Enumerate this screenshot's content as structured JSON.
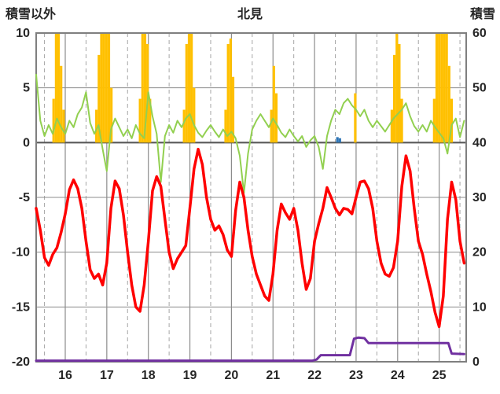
{
  "header": {
    "left_axis_title": "積雪以外",
    "title": "北見",
    "right_axis_title": "積雪"
  },
  "chart_data": {
    "type": "line",
    "title": "北見",
    "grid": {
      "major_color": "#8c8c8c",
      "minor_dash_color": "#a6a6a6",
      "zero_line_color": "#595959",
      "frame_color": "#7f7f7f"
    },
    "left_axis": {
      "label": "積雪以外",
      "min": -20,
      "max": 10,
      "ticks": [
        10,
        5,
        0,
        -5,
        -10,
        -15,
        -20
      ]
    },
    "right_axis": {
      "label": "積雪",
      "min": 0,
      "max": 60,
      "ticks": [
        60,
        50,
        40,
        30,
        20,
        10,
        0
      ]
    },
    "x_axis": {
      "min": 15.3,
      "max": 25.65,
      "major_ticks": [
        16,
        17,
        18,
        19,
        20,
        21,
        22,
        23,
        24,
        25
      ],
      "minor_gridline_start": 15.5,
      "minor_gridline_step": 1
    },
    "series": [
      {
        "name": "snowfall-bars",
        "type": "bar",
        "axis": "left",
        "color": "#FFC000",
        "bar_width_days": 0.06,
        "points": [
          [
            15.72,
            4
          ],
          [
            15.78,
            10
          ],
          [
            15.84,
            10
          ],
          [
            15.9,
            7
          ],
          [
            15.96,
            3
          ],
          [
            16.75,
            3
          ],
          [
            16.81,
            8
          ],
          [
            16.87,
            10
          ],
          [
            16.93,
            10
          ],
          [
            16.99,
            10
          ],
          [
            17.05,
            10
          ],
          [
            17.11,
            5
          ],
          [
            17.8,
            4
          ],
          [
            17.86,
            10
          ],
          [
            17.92,
            10
          ],
          [
            17.98,
            9
          ],
          [
            18.04,
            4
          ],
          [
            18.86,
            3
          ],
          [
            18.92,
            9
          ],
          [
            18.98,
            10
          ],
          [
            19.04,
            10
          ],
          [
            19.1,
            5
          ],
          [
            19.86,
            3
          ],
          [
            19.92,
            9
          ],
          [
            19.98,
            9.5
          ],
          [
            20.04,
            6
          ],
          [
            20.96,
            3
          ],
          [
            21.02,
            7
          ],
          [
            21.08,
            4.5
          ],
          [
            22.98,
            4.5
          ],
          [
            23.86,
            3
          ],
          [
            23.92,
            8
          ],
          [
            23.98,
            10
          ],
          [
            24.04,
            9
          ],
          [
            24.1,
            4
          ],
          [
            24.88,
            4
          ],
          [
            24.94,
            10
          ],
          [
            25.0,
            10
          ],
          [
            25.06,
            10
          ],
          [
            25.12,
            10
          ],
          [
            25.18,
            10
          ],
          [
            25.24,
            7
          ],
          [
            25.3,
            4
          ]
        ]
      },
      {
        "name": "small-blue-bars",
        "type": "bar",
        "axis": "left",
        "color": "#2E75B6",
        "bar_width_days": 0.06,
        "points": [
          [
            22.55,
            0.5
          ],
          [
            22.61,
            0.4
          ]
        ]
      },
      {
        "name": "green-line",
        "type": "line",
        "axis": "left",
        "color": "#92D050",
        "width": 2,
        "x0": 15.3,
        "dx": 0.1,
        "values": [
          6.2,
          2.0,
          0.6,
          1.6,
          0.8,
          2.2,
          1.4,
          0.8,
          2.0,
          1.4,
          2.6,
          3.2,
          4.6,
          1.8,
          0.8,
          1.6,
          -0.6,
          -2.6,
          1.2,
          2.2,
          1.4,
          0.6,
          1.2,
          0.4,
          1.6,
          0.8,
          0.4,
          4.6,
          2.4,
          0.8,
          -3.6,
          0.6,
          1.6,
          0.9,
          2.0,
          1.4,
          2.2,
          2.6,
          1.6,
          0.9,
          0.5,
          1.1,
          1.6,
          1.0,
          0.5,
          1.2,
          0.6,
          1.0,
          0.4,
          -1.2,
          -4.6,
          -1.0,
          1.2,
          2.0,
          2.6,
          2.0,
          1.4,
          2.2,
          1.6,
          0.9,
          0.5,
          1.2,
          0.6,
          0.1,
          0.6,
          -0.4,
          0.2,
          0.6,
          -0.4,
          -2.4,
          0.6,
          2.0,
          3.0,
          2.6,
          3.6,
          4.0,
          3.4,
          3.0,
          2.4,
          3.0,
          2.0,
          1.4,
          2.0,
          1.5,
          1.0,
          1.6,
          2.2,
          2.6,
          3.0,
          3.6,
          2.4,
          1.5,
          1.0,
          1.6,
          1.0,
          2.0,
          1.4,
          0.9,
          0.4,
          -1.0,
          1.6,
          2.2,
          0.5,
          2.0
        ]
      },
      {
        "name": "temperature-line",
        "type": "line",
        "axis": "left",
        "color": "#FF0000",
        "width": 3.5,
        "x0": 15.3,
        "dx": 0.1,
        "values": [
          -6.0,
          -8.0,
          -10.5,
          -11.2,
          -10.2,
          -9.6,
          -8.2,
          -6.5,
          -4.3,
          -3.4,
          -4.2,
          -6.0,
          -9.0,
          -11.6,
          -12.4,
          -12.0,
          -13.0,
          -11.0,
          -6.0,
          -3.5,
          -4.2,
          -6.6,
          -10.0,
          -13.0,
          -15.0,
          -15.4,
          -13.0,
          -9.0,
          -4.4,
          -3.1,
          -4.0,
          -7.0,
          -10.0,
          -11.5,
          -10.6,
          -10.0,
          -9.4,
          -6.0,
          -2.4,
          -0.6,
          -2.0,
          -5.0,
          -7.0,
          -8.0,
          -7.6,
          -8.4,
          -9.8,
          -10.4,
          -6.2,
          -3.6,
          -5.0,
          -8.0,
          -10.4,
          -12.0,
          -13.0,
          -14.0,
          -14.4,
          -12.0,
          -8.0,
          -5.6,
          -6.4,
          -7.0,
          -6.0,
          -8.0,
          -11.0,
          -13.4,
          -12.4,
          -9.0,
          -7.4,
          -6.0,
          -4.1,
          -5.0,
          -6.0,
          -6.6,
          -6.0,
          -6.1,
          -6.5,
          -5.0,
          -3.6,
          -3.5,
          -4.2,
          -6.0,
          -9.0,
          -11.0,
          -12.0,
          -12.2,
          -11.4,
          -9.0,
          -4.0,
          -1.2,
          -2.6,
          -6.0,
          -9.0,
          -10.2,
          -12.0,
          -13.6,
          -15.5,
          -16.8,
          -14.0,
          -7.0,
          -3.6,
          -5.2,
          -9.0,
          -11.0
        ]
      },
      {
        "name": "snow-depth-line",
        "type": "line",
        "axis": "right",
        "color": "#7030A0",
        "width": 3,
        "points": [
          [
            15.3,
            0.2
          ],
          [
            21.95,
            0.2
          ],
          [
            22.05,
            0.4
          ],
          [
            22.15,
            1.2
          ],
          [
            22.85,
            1.2
          ],
          [
            22.95,
            4.2
          ],
          [
            23.05,
            4.4
          ],
          [
            23.2,
            4.3
          ],
          [
            23.3,
            3.4
          ],
          [
            25.15,
            3.4
          ],
          [
            25.22,
            3.4
          ],
          [
            25.3,
            1.5
          ],
          [
            25.6,
            1.4
          ]
        ]
      }
    ]
  }
}
